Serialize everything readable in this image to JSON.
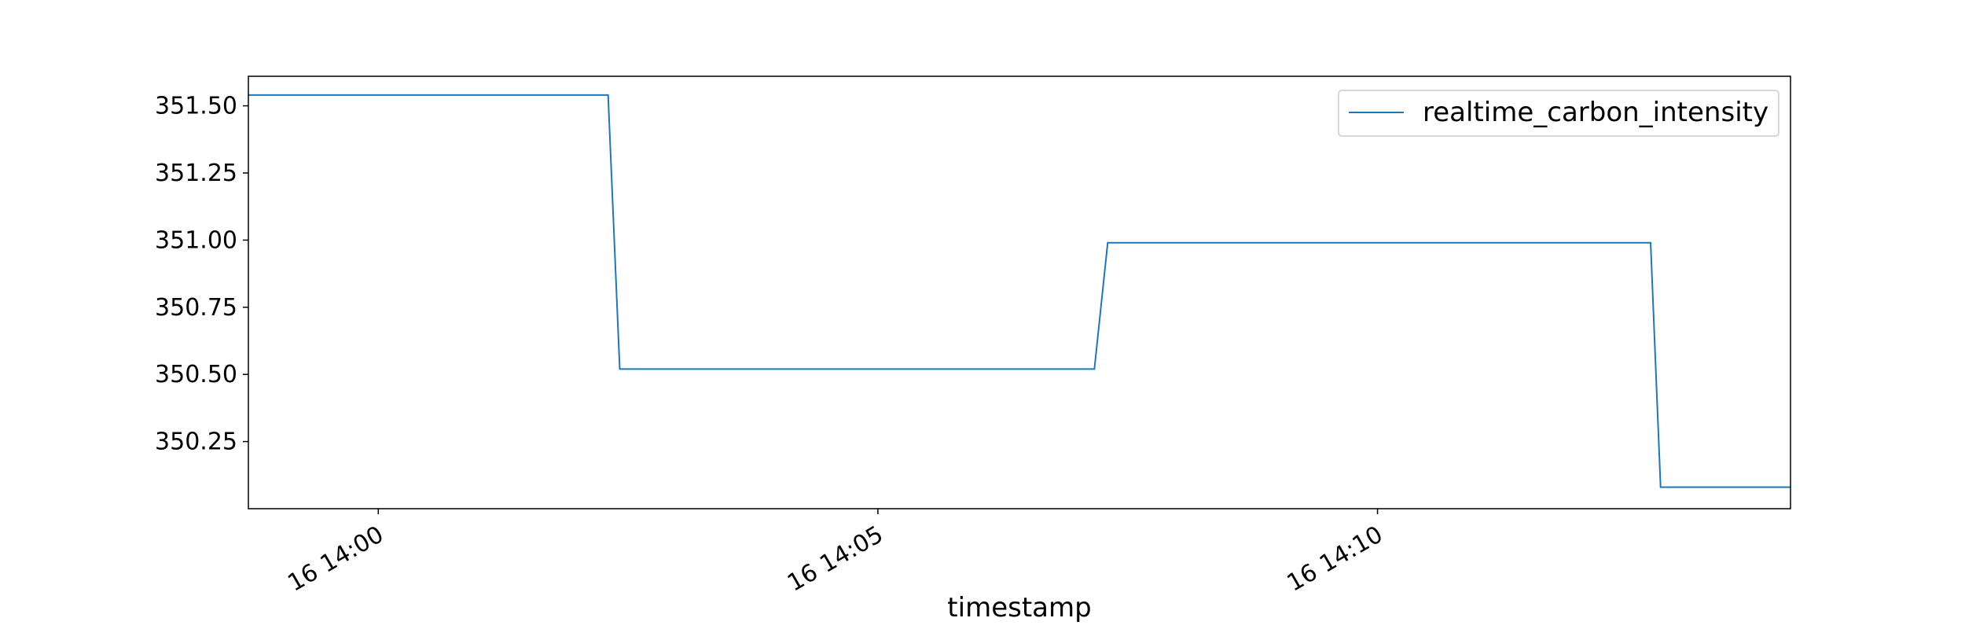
{
  "chart_data": {
    "type": "line",
    "title": "",
    "xlabel": "timestamp",
    "ylabel": "",
    "series": [
      {
        "name": "realtime_carbon_intensity",
        "color": "#1f77b4",
        "x": [
          "16 13:58:42",
          "16 14:02:18",
          "16 14:02:25",
          "16 14:07:10",
          "16 14:07:18",
          "16 14:12:44",
          "16 14:12:50",
          "16 14:14:08"
        ],
        "values": [
          351.54,
          351.54,
          350.52,
          350.52,
          350.99,
          350.99,
          350.08,
          350.08
        ]
      }
    ],
    "xlim": [
      "16 13:58:42",
      "16 14:14:08"
    ],
    "ylim": [
      350.0,
      351.61
    ],
    "x_ticks": [
      {
        "value": "16 14:00",
        "label": "16 14:00"
      },
      {
        "value": "16 14:05",
        "label": "16 14:05"
      },
      {
        "value": "16 14:10",
        "label": "16 14:10"
      }
    ],
    "y_ticks": [
      {
        "value": 350.25,
        "label": "350.25"
      },
      {
        "value": 350.5,
        "label": "350.50"
      },
      {
        "value": 350.75,
        "label": "350.75"
      },
      {
        "value": 351.0,
        "label": "351.00"
      },
      {
        "value": 351.25,
        "label": "351.25"
      },
      {
        "value": 351.5,
        "label": "351.50"
      }
    ],
    "grid": false,
    "legend_position": "top-right"
  }
}
